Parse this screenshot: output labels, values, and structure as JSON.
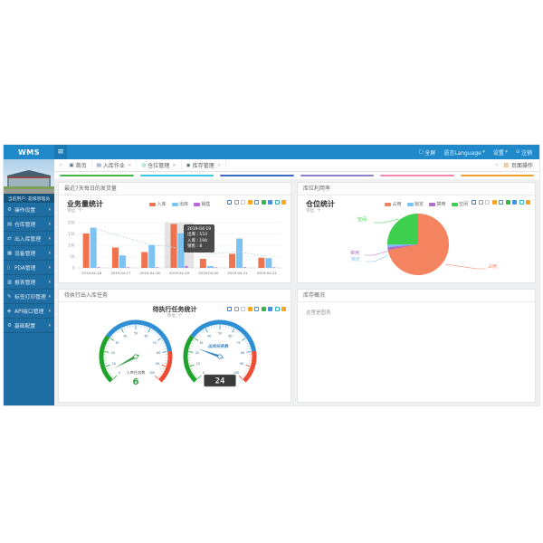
{
  "header": {
    "brand": "WMS",
    "menu_toggle": "≡",
    "actions": [
      {
        "name": "fullscreen",
        "icon": "▢",
        "label": "全屏",
        "caret": ""
      },
      {
        "name": "language",
        "icon": "",
        "label": "语言Language",
        "caret": "▾"
      },
      {
        "name": "settings",
        "icon": "",
        "label": "设置",
        "caret": "▾"
      },
      {
        "name": "logout",
        "icon": "⊙",
        "label": "注销",
        "caret": ""
      }
    ]
  },
  "sidebar": {
    "user_label": "当前用户: 超级管理员",
    "items": [
      {
        "icon": "⚙",
        "label": "操作设置"
      },
      {
        "icon": "▤",
        "label": "仓库管理"
      },
      {
        "icon": "⇄",
        "label": "出入库管理"
      },
      {
        "icon": "▦",
        "label": "设备管理"
      },
      {
        "icon": "▯",
        "label": "PDA管理"
      },
      {
        "icon": "▥",
        "label": "报表管理"
      },
      {
        "icon": "✎",
        "label": "标签打印管理"
      },
      {
        "icon": "◈",
        "label": "API接口管理"
      },
      {
        "icon": "⚙",
        "label": "基础配置"
      }
    ]
  },
  "tabbar": {
    "back": "‹",
    "forward": "›",
    "tabs": [
      {
        "icon": "▣",
        "icon_color": "#5a7184",
        "label": "首页",
        "closable": false
      },
      {
        "icon": "▤",
        "icon_color": "#4a6fa0",
        "label": "入库作业",
        "closable": true
      },
      {
        "icon": "◎",
        "icon_color": "#26a69a",
        "label": "仓位管理",
        "closable": true
      },
      {
        "icon": "◉",
        "icon_color": "#455a64",
        "label": "库存管理",
        "closable": true
      }
    ],
    "page_actions": {
      "icon": "▨",
      "label": "页面操作"
    }
  },
  "theme_colors": [
    "#44b549",
    "#3bc8e3",
    "#3d68c4",
    "#8f7fd1",
    "#ef8ab0",
    "#efa131"
  ],
  "panels": {
    "shipments_title": "最近7天每日的发货量",
    "bin_title": "库位利用率",
    "tasks_title": "待执行出入库任务",
    "inventory_title": "库存概况",
    "inventory_placeholder": "这里是图表"
  },
  "toolbox": [
    {
      "name": "data-zoom",
      "color": "#2f7ed8",
      "filled": false
    },
    {
      "name": "zoom-reset",
      "color": "#9b9b9b",
      "filled": false
    },
    {
      "name": "magic-type-line",
      "color": "#c3c9d0",
      "filled": false
    },
    {
      "name": "magic-type-bar",
      "color": "#f5a623",
      "filled": true
    },
    {
      "name": "magic-type-stack",
      "color": "#4a90d9",
      "filled": false
    },
    {
      "name": "magic-type-tiled",
      "color": "#39b54a",
      "filled": true
    },
    {
      "name": "data-view",
      "color": "#4a90d9",
      "filled": true
    },
    {
      "name": "restore",
      "color": "#2bb3c0",
      "filled": false
    },
    {
      "name": "save-image",
      "color": "#f5a623",
      "filled": true
    }
  ],
  "chart_data": [
    {
      "type": "bar",
      "title": "业务量统计",
      "subtitle": "单位: 个",
      "categories": [
        "2019-04-16",
        "2019-04-17",
        "2019-04-18",
        "2019-04-19",
        "2019-04-20",
        "2019-04-21",
        "2019-04-22"
      ],
      "series": [
        {
          "name": "入库",
          "color": "#f0734f",
          "values": [
            152,
            90,
            70,
            194,
            40,
            62,
            45
          ]
        },
        {
          "name": "出库",
          "color": "#7cc3f2",
          "values": [
            178,
            55,
            100,
            153,
            8,
            130,
            43
          ]
        },
        {
          "name": "销售",
          "color": "#b868d8",
          "values": [
            3,
            2,
            2,
            8,
            2,
            3,
            2
          ]
        }
      ],
      "trend": [
        178,
        140,
        103,
        88,
        60,
        72,
        50
      ],
      "ylim": [
        0,
        200
      ],
      "yticks": [
        0,
        50,
        100,
        150,
        200
      ],
      "grid": true,
      "legend_position": "top",
      "tooltip": {
        "title": "2019-04-19",
        "lines": [
          "出库 : 153",
          "入库 : 194",
          "销售 : 8"
        ],
        "highlight_index": 3
      }
    },
    {
      "type": "pie",
      "title": "仓位统计",
      "subtitle": "单位: 个",
      "slices": [
        {
          "name": "占用",
          "pct": 72,
          "color": "#f4845f"
        },
        {
          "name": "禁用",
          "pct": 1.5,
          "color": "#b06fc9"
        },
        {
          "name": "锁定",
          "pct": 1.5,
          "color": "#7cc3f2"
        },
        {
          "name": "空闲",
          "pct": 25,
          "color": "#3fcf4f"
        }
      ],
      "legend_order": [
        "占用",
        "锁定",
        "禁用",
        "空闲"
      ],
      "legend_position": "top"
    },
    {
      "type": "gauge",
      "title": "待执行任务统计",
      "subtitle": "单位: 个",
      "gauges": [
        {
          "name": "入库任务数",
          "value": 6,
          "min": 0,
          "max": 100,
          "needle_color": "#2f9e3f",
          "value_color": "#2f9e3f",
          "display": "text"
        },
        {
          "name": "出库任务数",
          "value": 24,
          "min": 0,
          "max": 100,
          "needle_color": "#3a87c8",
          "value_color": "#e3e6e8",
          "display": "lcd"
        }
      ],
      "zones": [
        {
          "to": 30,
          "color": "#1fa32c"
        },
        {
          "to": 80,
          "color": "#2e8fd4"
        },
        {
          "to": 100,
          "color": "#ef4b33"
        }
      ],
      "tick_labels": [
        0,
        10,
        20,
        30,
        40,
        50,
        60,
        70,
        80,
        90,
        100
      ]
    }
  ]
}
